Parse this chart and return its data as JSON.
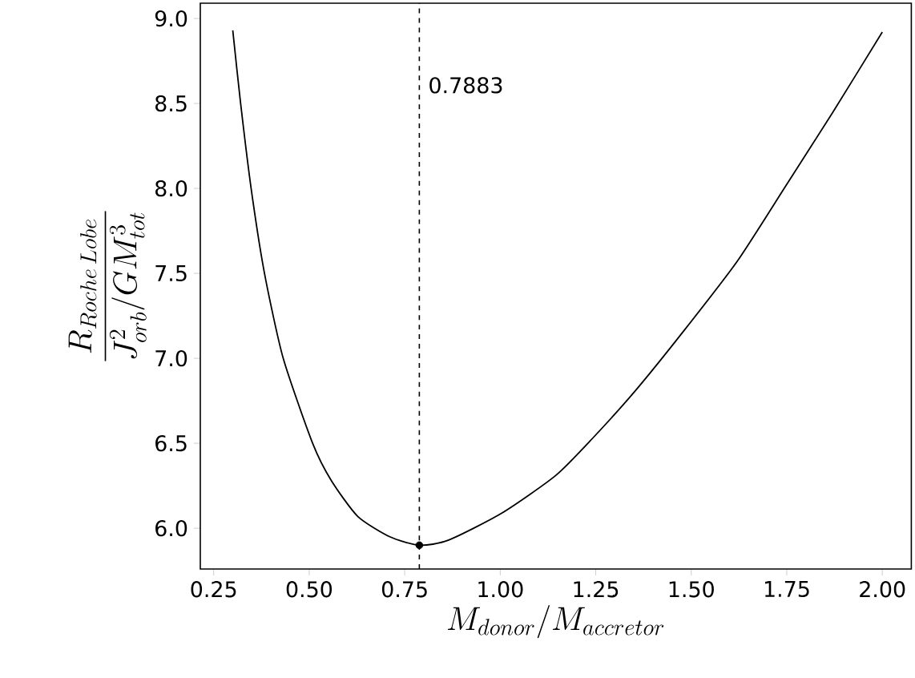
{
  "chart_data": {
    "type": "line",
    "xlabel": "M_{donor}/M_{accretor}",
    "ylabel": "\\frac{R_{Roche\\,Lobe}}{J_{orb}^{2}/GM_{tot}^{3}}",
    "xlim": [
      0.215,
      2.076
    ],
    "ylim": [
      5.76,
      9.09
    ],
    "xticks": [
      {
        "value": 0.25,
        "label": "0.25"
      },
      {
        "value": 0.5,
        "label": "0.50"
      },
      {
        "value": 0.75,
        "label": "0.75"
      },
      {
        "value": 1.0,
        "label": "1.00"
      },
      {
        "value": 1.25,
        "label": "1.25"
      },
      {
        "value": 1.5,
        "label": "1.50"
      },
      {
        "value": 1.75,
        "label": "1.75"
      },
      {
        "value": 2.0,
        "label": "2.00"
      }
    ],
    "yticks": [
      {
        "value": 6.0,
        "label": "6.0"
      },
      {
        "value": 6.5,
        "label": "6.5"
      },
      {
        "value": 7.0,
        "label": "7.0"
      },
      {
        "value": 7.5,
        "label": "7.5"
      },
      {
        "value": 8.0,
        "label": "8.0"
      },
      {
        "value": 8.5,
        "label": "8.5"
      },
      {
        "value": 9.0,
        "label": "9.0"
      }
    ],
    "series": [
      {
        "color": "#000000",
        "marker": "none",
        "line_style": "solid",
        "x": [
          0.3,
          0.32,
          0.348,
          0.383,
          0.432,
          0.509,
          0.558,
          0.627,
          0.711,
          0.7883,
          0.865,
          1.005,
          1.145,
          1.242,
          1.354,
          1.48,
          1.62,
          1.746,
          1.871,
          2.0
        ],
        "values": [
          8.93,
          8.51,
          8.0,
          7.5,
          7.0,
          6.5,
          6.28,
          6.07,
          5.95,
          5.9,
          5.93,
          6.09,
          6.31,
          6.53,
          6.81,
          7.16,
          7.57,
          8.01,
          8.45,
          8.92
        ]
      },
      {
        "type": "scatter",
        "color": "#000000",
        "marker": "circle",
        "x": [
          0.7883
        ],
        "values": [
          5.9
        ]
      }
    ],
    "ref_lines": [
      {
        "axis": "x",
        "value": 0.7883,
        "label": "0.7883",
        "color": "#000000",
        "line_style": "dashed"
      }
    ]
  }
}
